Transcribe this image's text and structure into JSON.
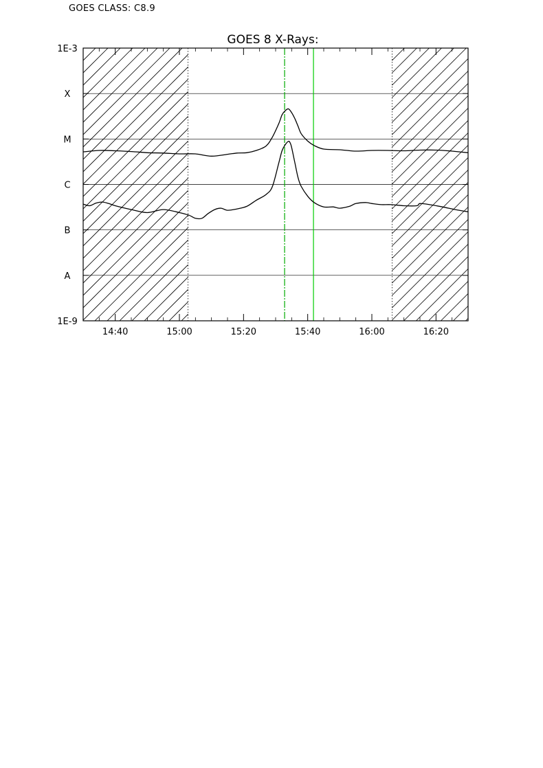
{
  "header": {
    "class_label": "GOES CLASS: C8.9"
  },
  "chart_data": {
    "type": "line",
    "title": "GOES 8 X-Rays:",
    "xlabel": "",
    "ylabel": "",
    "x_unit": "UT time (minutes since 00:00)",
    "xlim": [
      870,
      990
    ],
    "x_tick_values": [
      880,
      900,
      920,
      940,
      960,
      980
    ],
    "x_tick_labels": [
      "14:40",
      "15:00",
      "15:20",
      "15:40",
      "16:00",
      "16:20"
    ],
    "y_scale": "log",
    "ylim": [
      1e-09,
      0.001
    ],
    "y_tick_values": [
      1e-09,
      1e-08,
      1e-07,
      1e-06,
      1e-05,
      0.0001,
      0.001
    ],
    "y_tick_labels": [
      "1E-9",
      "A",
      "B",
      "C",
      "M",
      "X",
      "1E-3"
    ],
    "grid": true,
    "night_shading": [
      [
        870,
        902.7
      ],
      [
        966.3,
        990
      ]
    ],
    "flare_markers": [
      {
        "x": 932.8,
        "color": "#00aa00",
        "style": "dash-dot"
      },
      {
        "x": 941.8,
        "color": "#00cc00",
        "style": "solid"
      }
    ],
    "series": [
      {
        "values_x": [
          870,
          872,
          874,
          876,
          878,
          880,
          885,
          890,
          895,
          900,
          903,
          905,
          907,
          909,
          911,
          913,
          915,
          918,
          921,
          924,
          927,
          929,
          931,
          932,
          933,
          934,
          934.5,
          935,
          936,
          937,
          938,
          940,
          942,
          945,
          948,
          950,
          953,
          955,
          958,
          960,
          963,
          966,
          970,
          974,
          975,
          978,
          982,
          986,
          990
        ],
        "values_y": [
          3.7e-07,
          3.4e-07,
          3.9e-07,
          4.1e-07,
          3.8e-07,
          3.4e-07,
          2.8e-07,
          2.4e-07,
          2.8e-07,
          2.4e-07,
          2.1e-07,
          1.8e-07,
          1.8e-07,
          2.3e-07,
          2.8e-07,
          3e-07,
          2.7e-07,
          2.9e-07,
          3.3e-07,
          4.5e-07,
          6e-07,
          9e-07,
          3e-06,
          5.5e-06,
          7.5e-06,
          8.9e-06,
          8.3e-06,
          6.5e-06,
          3e-06,
          1.4e-06,
          9e-07,
          5.5e-07,
          4e-07,
          3.2e-07,
          3.2e-07,
          3e-07,
          3.3e-07,
          3.8e-07,
          4e-07,
          3.8e-07,
          3.6e-07,
          3.6e-07,
          3.4e-07,
          3.4e-07,
          3.8e-07,
          3.6e-07,
          3.2e-07,
          2.8e-07,
          2.5e-07
        ]
      },
      {
        "values_x": [
          870,
          875,
          880,
          885,
          890,
          895,
          900,
          905,
          910,
          915,
          918,
          921,
          924,
          927,
          929,
          931,
          932,
          933,
          934,
          935,
          936,
          937,
          938,
          940,
          942,
          945,
          950,
          955,
          960,
          965,
          970,
          975,
          980,
          985,
          990
        ],
        "values_y": [
          5.2e-06,
          5.6e-06,
          5.5e-06,
          5.3e-06,
          5e-06,
          4.9e-06,
          4.7e-06,
          4.7e-06,
          4.2e-06,
          4.6e-06,
          4.9e-06,
          5e-06,
          5.6e-06,
          7e-06,
          1.1e-05,
          2.2e-05,
          3.4e-05,
          4.2e-05,
          4.6e-05,
          3.8e-05,
          2.8e-05,
          1.9e-05,
          1.3e-05,
          9e-06,
          7.2e-06,
          6e-06,
          5.8e-06,
          5.4e-06,
          5.6e-06,
          5.6e-06,
          5.5e-06,
          5.7e-06,
          5.7e-06,
          5.4e-06,
          5e-06
        ]
      }
    ]
  }
}
